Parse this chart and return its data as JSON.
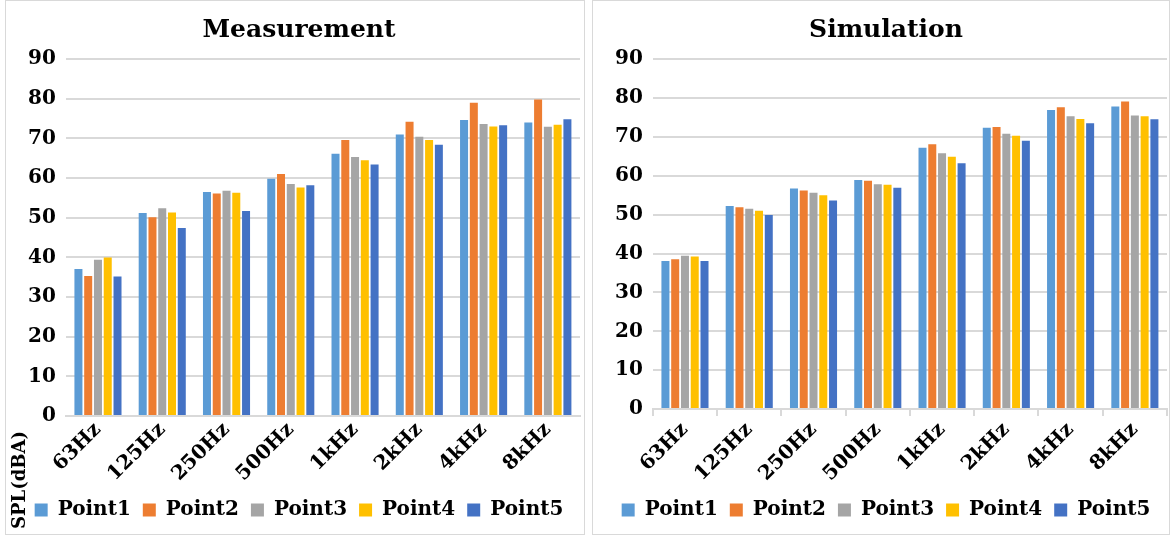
{
  "chart_data": [
    {
      "type": "bar",
      "title": "Measurement",
      "ylabel": "SPL(dBA)",
      "categories": [
        "63Hz",
        "125Hz",
        "250Hz",
        "500Hz",
        "1kHz",
        "2kHz",
        "4kHz",
        "8kHz"
      ],
      "series": [
        {
          "name": "Point1",
          "color": "#5b9bd5",
          "values": [
            37.1,
            51.2,
            56.5,
            59.8,
            66.1,
            71.0,
            74.6,
            74.0
          ]
        },
        {
          "name": "Point2",
          "color": "#ed7d31",
          "values": [
            35.3,
            50.1,
            56.1,
            61.0,
            69.6,
            74.2,
            79.0,
            79.8
          ]
        },
        {
          "name": "Point3",
          "color": "#a5a5a5",
          "values": [
            39.4,
            52.4,
            56.8,
            58.5,
            65.3,
            70.4,
            73.6,
            72.9
          ]
        },
        {
          "name": "Point4",
          "color": "#ffc000",
          "values": [
            40.0,
            51.3,
            56.3,
            57.6,
            64.5,
            69.6,
            73.0,
            73.4
          ]
        },
        {
          "name": "Point5",
          "color": "#4472c4",
          "values": [
            35.2,
            47.4,
            51.7,
            58.2,
            63.4,
            68.4,
            73.3,
            74.8
          ]
        }
      ],
      "ylim": [
        0,
        90
      ],
      "yticks": [
        0,
        10,
        20,
        30,
        40,
        50,
        60,
        70,
        80,
        90
      ],
      "grid": "y",
      "legend": "bottom"
    },
    {
      "type": "bar",
      "title": "Simulation",
      "categories": [
        "63Hz",
        "125Hz",
        "250Hz",
        "500Hz",
        "1kHz",
        "2kHz",
        "4kHz",
        "8kHz"
      ],
      "series": [
        {
          "name": "Point1",
          "color": "#5b9bd5",
          "values": [
            38.1,
            52.2,
            56.7,
            58.9,
            67.2,
            72.3,
            76.9,
            77.8
          ]
        },
        {
          "name": "Point2",
          "color": "#ed7d31",
          "values": [
            38.5,
            51.9,
            56.2,
            58.7,
            68.1,
            72.5,
            77.6,
            79.1
          ]
        },
        {
          "name": "Point3",
          "color": "#a5a5a5",
          "values": [
            39.4,
            51.5,
            55.6,
            57.8,
            65.8,
            70.8,
            75.3,
            75.5
          ]
        },
        {
          "name": "Point4",
          "color": "#ffc000",
          "values": [
            39.2,
            51.0,
            55.0,
            57.7,
            64.9,
            70.3,
            74.6,
            75.3
          ]
        },
        {
          "name": "Point5",
          "color": "#4472c4",
          "values": [
            38.1,
            49.9,
            53.6,
            56.9,
            63.2,
            69.0,
            73.5,
            74.5
          ]
        }
      ],
      "ylim": [
        0,
        90
      ],
      "yticks": [
        0,
        10,
        20,
        30,
        40,
        50,
        60,
        70,
        80,
        90
      ],
      "grid": "y",
      "legend": "bottom"
    }
  ]
}
